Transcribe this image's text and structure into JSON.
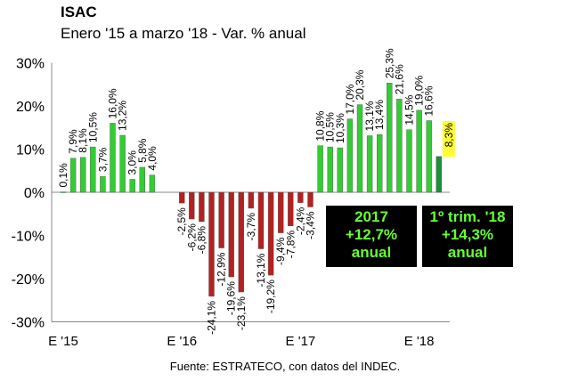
{
  "header": {
    "title": "ISAC",
    "subtitle": "Enero '15 a marzo '18 - Var. % anual"
  },
  "source": "Fuente: ESTRATECO, con datos del INDEC.",
  "boxes": [
    {
      "lines": [
        "2017",
        "+12,7%",
        "anual"
      ]
    },
    {
      "lines": [
        "1º trim. '18",
        "+14,3%",
        "anual"
      ]
    }
  ],
  "colors": {
    "positive": "#33cc33",
    "negative": "#b22222",
    "latest": "#1a8f3a",
    "highlight": "#ffff33",
    "box_text": "#66ff33"
  },
  "chart_data": {
    "type": "bar",
    "yticks": [
      "30%",
      "20%",
      "10%",
      "0%",
      "-10%",
      "-20%",
      "-30%"
    ],
    "ylim": [
      -30,
      30
    ],
    "grid": false,
    "xtick_labels": [
      {
        "label": "E '15",
        "index": 0
      },
      {
        "label": "E '16",
        "index": 12
      },
      {
        "label": "E '17",
        "index": 24
      },
      {
        "label": "E '18",
        "index": 36
      }
    ],
    "values": [
      0.1,
      7.9,
      8.1,
      10.5,
      3.7,
      16.0,
      13.2,
      3.0,
      5.8,
      4.0,
      null,
      null,
      -2.5,
      -6.2,
      -6.8,
      -24.1,
      -12.9,
      -19.6,
      -23.1,
      -3.7,
      -13.1,
      -19.2,
      -9.4,
      -7.8,
      -2.4,
      -3.4,
      10.8,
      10.5,
      10.3,
      17.0,
      20.3,
      13.1,
      13.4,
      25.3,
      21.6,
      14.5,
      19.0,
      16.6,
      8.3
    ],
    "labels": [
      "0,1%",
      "7,9%",
      "8,1%",
      "10,5%",
      "3,7%",
      "16,0%",
      "13,2%",
      "3,0%",
      "5,8%",
      "4,0%",
      "",
      "",
      "-2,5%",
      "-6,2%",
      "-6,8%",
      "-24,1%",
      "-12,9%",
      "-19,6%",
      "-23,1%",
      "-3,7%",
      "-13,1%",
      "-19,2%",
      "-9,4%",
      "-7,8%",
      "-2,4%",
      "-3,4%",
      "10,8%",
      "10,5%",
      "10,3%",
      "17,0%",
      "20,3%",
      "13,1%",
      "13,4%",
      "25,3%",
      "21,6%",
      "14,5%",
      "19,0%",
      "16,6%",
      "8,3%"
    ],
    "highlighted_label": "8,3%"
  }
}
